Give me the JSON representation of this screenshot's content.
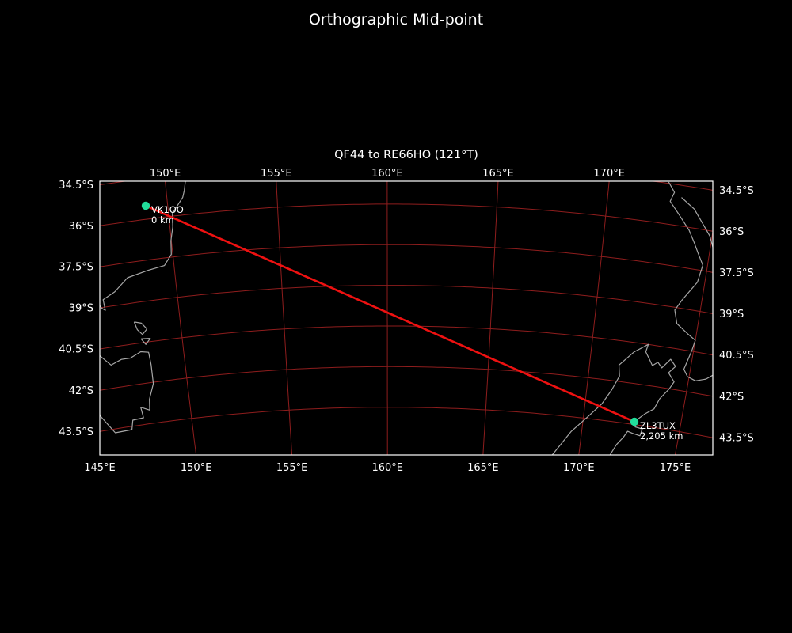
{
  "page": {
    "background": "#000000"
  },
  "header": {
    "title": "Orthographic Mid-point"
  },
  "map": {
    "subtitle": "QF44 to RE66HO (121°T)"
  },
  "chart_data": {
    "type": "map",
    "projection": "orthographic-midpoint",
    "title": "Orthographic Mid-point",
    "axes_title": "QF44 to RE66HO (121°T)",
    "points": [
      {
        "callsign": "VK1OO",
        "grid": "QF44",
        "lat": -35.5,
        "lon": 149.0,
        "distance_label": "0 km"
      },
      {
        "callsign": "ZL3TUX",
        "grid": "RE66HO",
        "lat": -43.396,
        "lon": 172.625,
        "distance_label": "2,205 km"
      }
    ],
    "path": {
      "from": "QF44",
      "to": "RE66HO",
      "bearing_label": "121°T",
      "distance_km": 2205
    },
    "grid": {
      "lat_lines": [
        -34.5,
        -36,
        -37.5,
        -39,
        -40.5,
        -42,
        -43.5
      ],
      "lat_labels": [
        "34.5°S",
        "36°S",
        "37.5°S",
        "39°S",
        "40.5°S",
        "42°S",
        "43.5°S"
      ],
      "lon_lines": [
        145,
        150,
        155,
        160,
        165,
        170,
        175
      ],
      "lon_labels": [
        "145°E",
        "150°E",
        "155°E",
        "160°E",
        "165°E",
        "170°E",
        "175°E"
      ]
    },
    "colors": {
      "background": "#000000",
      "grid": "#8e1d1d",
      "coast": "#a6a6a6",
      "path": "#ee1111",
      "marker": "#21dd9b",
      "text": "#ffffff",
      "border": "#ffffff"
    },
    "coastlines": {
      "australia_se": [
        [
          151.5,
          -33.85
        ],
        [
          151.15,
          -34.1
        ],
        [
          150.95,
          -34.6
        ],
        [
          150.82,
          -35.1
        ],
        [
          150.72,
          -35.35
        ],
        [
          150.18,
          -35.9
        ],
        [
          150.13,
          -36.4
        ],
        [
          149.98,
          -36.9
        ],
        [
          149.93,
          -37.4
        ],
        [
          149.55,
          -37.78
        ],
        [
          148.75,
          -37.88
        ],
        [
          147.75,
          -38.05
        ],
        [
          147.05,
          -38.5
        ],
        [
          146.45,
          -38.72
        ],
        [
          146.48,
          -39.12
        ],
        [
          146.32,
          -39.02
        ],
        [
          146.22,
          -38.88
        ],
        [
          145.8,
          -38.9
        ],
        [
          145.4,
          -38.6
        ],
        [
          144.9,
          -38.6
        ]
      ],
      "tasmania": [
        [
          144.75,
          -40.7
        ],
        [
          145.3,
          -40.8
        ],
        [
          145.8,
          -40.68
        ],
        [
          146.35,
          -41.15
        ],
        [
          146.9,
          -41.0
        ],
        [
          147.35,
          -41.0
        ],
        [
          147.9,
          -40.82
        ],
        [
          148.28,
          -40.88
        ],
        [
          148.32,
          -41.35
        ],
        [
          148.3,
          -42.05
        ],
        [
          148.0,
          -42.6
        ],
        [
          147.93,
          -43.0
        ],
        [
          147.5,
          -42.85
        ],
        [
          147.56,
          -43.25
        ],
        [
          147.0,
          -43.28
        ],
        [
          146.88,
          -43.62
        ],
        [
          146.0,
          -43.64
        ],
        [
          145.4,
          -42.95
        ],
        [
          145.18,
          -42.25
        ],
        [
          144.72,
          -41.2
        ],
        [
          144.75,
          -40.7
        ]
      ],
      "flinders_island": [
        [
          147.78,
          -39.7
        ],
        [
          148.12,
          -39.78
        ],
        [
          148.35,
          -40.02
        ],
        [
          148.1,
          -40.2
        ],
        [
          147.88,
          -40.0
        ],
        [
          147.78,
          -39.7
        ]
      ],
      "cape_barren_island": [
        [
          148.0,
          -40.35
        ],
        [
          148.45,
          -40.38
        ],
        [
          148.2,
          -40.58
        ],
        [
          148.0,
          -40.35
        ]
      ],
      "nz_north_island_west": [
        [
          172.68,
          -34.45
        ],
        [
          173.0,
          -34.8
        ],
        [
          172.86,
          -35.15
        ],
        [
          173.3,
          -35.55
        ],
        [
          173.9,
          -36.1
        ],
        [
          174.2,
          -36.5
        ],
        [
          174.48,
          -36.9
        ],
        [
          174.78,
          -37.3
        ],
        [
          174.65,
          -37.95
        ],
        [
          174.05,
          -38.7
        ],
        [
          173.78,
          -39.1
        ],
        [
          173.98,
          -39.58
        ],
        [
          174.6,
          -39.9
        ],
        [
          175.0,
          -40.08
        ],
        [
          174.92,
          -40.45
        ],
        [
          174.68,
          -41.2
        ],
        [
          174.92,
          -41.45
        ],
        [
          175.35,
          -41.55
        ],
        [
          175.85,
          -41.42
        ],
        [
          176.45,
          -41.05
        ]
      ],
      "nz_north_island_east": [
        [
          173.35,
          -34.95
        ],
        [
          174.0,
          -35.3
        ],
        [
          174.45,
          -35.75
        ],
        [
          174.9,
          -36.2
        ],
        [
          175.15,
          -36.65
        ]
      ],
      "nz_south_island": [
        [
          168.55,
          -45.05
        ],
        [
          169.45,
          -44.05
        ],
        [
          170.2,
          -43.45
        ],
        [
          170.85,
          -42.9
        ],
        [
          171.25,
          -42.35
        ],
        [
          171.55,
          -41.8
        ],
        [
          171.45,
          -41.4
        ],
        [
          172.1,
          -40.85
        ],
        [
          172.75,
          -40.5
        ],
        [
          172.68,
          -40.78
        ],
        [
          172.95,
          -41.08
        ],
        [
          173.1,
          -41.25
        ],
        [
          173.35,
          -41.1
        ],
        [
          173.58,
          -41.28
        ],
        [
          173.95,
          -40.92
        ],
        [
          174.25,
          -41.15
        ],
        [
          173.95,
          -41.42
        ],
        [
          174.3,
          -41.72
        ],
        [
          174.12,
          -42.0
        ],
        [
          173.72,
          -42.42
        ],
        [
          173.52,
          -42.82
        ],
        [
          173.1,
          -43.05
        ],
        [
          172.72,
          -43.32
        ],
        [
          172.7,
          -43.58
        ],
        [
          173.08,
          -43.62
        ],
        [
          173.02,
          -43.88
        ],
        [
          172.62,
          -43.83
        ],
        [
          172.35,
          -43.78
        ],
        [
          172.18,
          -44.02
        ],
        [
          171.88,
          -44.32
        ],
        [
          171.55,
          -44.85
        ]
      ]
    }
  }
}
